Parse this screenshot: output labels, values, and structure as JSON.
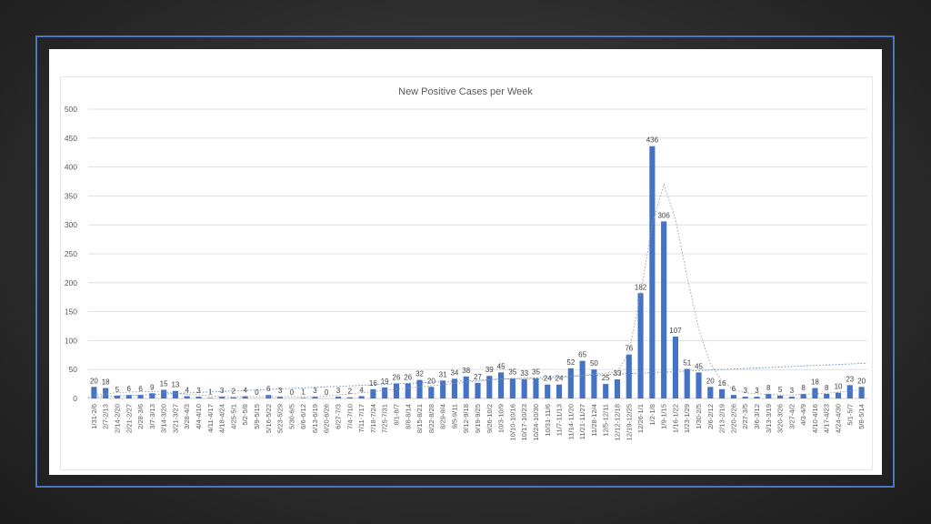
{
  "colors": {
    "bar": "#4472c4",
    "grid": "#d9d9d9",
    "frame": "#4a76c4",
    "trendline": "#9a9a9a"
  },
  "chart_data": {
    "type": "bar",
    "title": "New Positive Cases per Week",
    "xlabel": "",
    "ylabel": "",
    "ylim": [
      0,
      500
    ],
    "yticks": [
      0,
      50,
      100,
      150,
      200,
      250,
      300,
      350,
      400,
      450,
      500
    ],
    "grid": true,
    "legend": "none",
    "categories": [
      "1/31-2/6",
      "2/7-2/13",
      "2/14-2/20",
      "2/21-2/27",
      "2/28-3/6",
      "3/7-3/13",
      "3/14-3/20",
      "3/21-3/27",
      "3/28-4/3",
      "4/4-4/10",
      "4/11-4/17",
      "4/18-4/24",
      "4/25-5/1",
      "5/2-5/8",
      "5/9-5/15",
      "5/16-5/22",
      "5/23-5/29",
      "5/30-6/5",
      "6/6-6/12",
      "6/13-6/19",
      "6/20-6/26",
      "6/27-7/3",
      "7/4-7/10",
      "7/11-7/17",
      "7/18-7/24",
      "7/25-7/31",
      "8/1-8/7",
      "8/8-8/14",
      "8/15-8/21",
      "8/22-8/28",
      "8/29-9/4",
      "9/5-9/11",
      "9/12-9/18",
      "9/19-9/25",
      "9/26-10/2",
      "10/3-10/9",
      "10/10-10/16",
      "10/17-10/23",
      "10/24-10/30",
      "10/31-11/6",
      "11/7-11/13",
      "11/14-11/20",
      "11/21-11/27",
      "11/28-12/4",
      "12/5-12/11",
      "12/12-12/18",
      "12/19-12/25",
      "12/26-1/1",
      "1/2-1/8",
      "1/9-1/15",
      "1/16-1/22",
      "1/23-1/29",
      "1/30-2/5",
      "2/6-2/12",
      "2/13-2/19",
      "2/20-2/26",
      "2/27-3/5",
      "3/6-3/12",
      "3/13-3/19",
      "3/20-3/26",
      "3/27-4/2",
      "4/3-4/9",
      "4/10-4/16",
      "4/17-4/23",
      "4/24-4/30",
      "5/1-5/7",
      "5/8-5/14"
    ],
    "values": [
      20,
      18,
      5,
      6,
      6,
      9,
      15,
      13,
      4,
      3,
      1,
      3,
      2,
      4,
      0,
      6,
      3,
      0,
      1,
      3,
      0,
      3,
      2,
      4,
      16,
      19,
      26,
      26,
      32,
      20,
      31,
      34,
      38,
      27,
      39,
      45,
      35,
      33,
      35,
      24,
      24,
      52,
      65,
      50,
      25,
      33,
      76,
      182,
      436,
      306,
      107,
      51,
      45,
      20,
      16,
      6,
      3,
      3,
      8,
      5,
      3,
      8,
      18,
      8,
      10,
      23,
      20
    ],
    "moving_average": [
      6,
      8,
      10,
      11,
      12,
      12,
      11,
      9,
      7,
      6,
      4,
      3,
      3,
      3,
      3,
      3,
      3,
      3,
      3,
      3,
      4,
      6,
      8,
      10,
      12,
      14,
      16,
      18,
      20,
      22,
      24,
      26,
      28,
      30,
      32,
      34,
      34,
      34,
      34,
      34,
      36,
      38,
      40,
      42,
      44,
      46,
      80,
      180,
      300,
      370,
      310,
      210,
      120,
      60,
      30,
      15,
      10,
      8,
      7,
      6,
      6,
      7,
      8,
      9,
      11,
      13,
      15
    ],
    "linear_trend": [
      2,
      61
    ]
  }
}
